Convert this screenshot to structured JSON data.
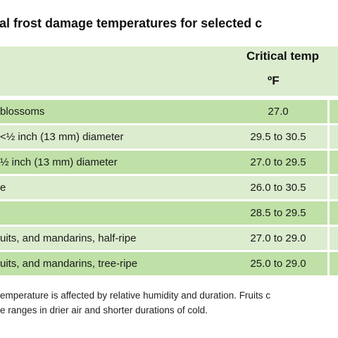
{
  "title": "ical frost damage temperatures for selected c",
  "header": {
    "main": "Critical temp",
    "unit": "ºF"
  },
  "rows": [
    {
      "name": "blossoms",
      "value": "27.0"
    },
    {
      "name": "<½ inch (13 mm) diameter",
      "value": "29.5 to 30.5"
    },
    {
      "name": "½ inch (13 mm) diameter",
      "value": "27.0 to 29.5"
    },
    {
      "name": "e",
      "value": "26.0 to 30.5"
    },
    {
      "name": "",
      "value": "28.5 to 29.5"
    },
    {
      "name": "uits, and mandarins, half-ripe",
      "value": "27.0 to 29.0"
    },
    {
      "name": "uits, and mandarins, tree-ripe",
      "value": "25.0 to 29.0"
    }
  ],
  "note": {
    "line1": "emperature is affected by relative humidity and duration. Fruits c",
    "line2": "e ranges in drier air and shorter durations of cold."
  },
  "colors": {
    "header_bg": "#dceccf",
    "row_dark": "#bfe0a6",
    "row_light": "#dceccf"
  }
}
